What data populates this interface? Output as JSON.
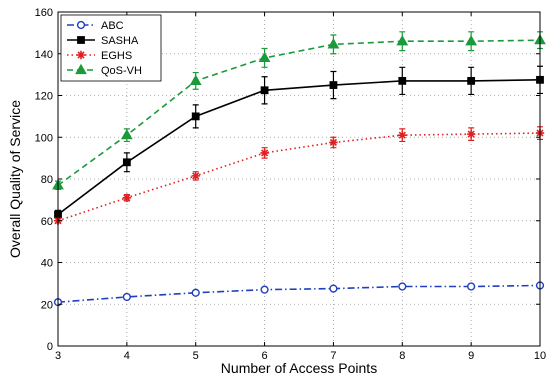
{
  "chart_data": {
    "type": "line",
    "xlabel": "Number of Access Points",
    "ylabel": "Overall Quality of Service",
    "xlim": [
      3,
      10
    ],
    "ylim": [
      0,
      160
    ],
    "xticks": [
      3,
      4,
      5,
      6,
      7,
      8,
      9,
      10
    ],
    "yticks": [
      0,
      20,
      40,
      60,
      80,
      100,
      120,
      140,
      160
    ],
    "grid": true,
    "legend": "top-left",
    "x": [
      3,
      4,
      5,
      6,
      7,
      8,
      9,
      10
    ],
    "series": [
      {
        "name": "ABC",
        "color": "#1f3fbf",
        "dash": "dashdot",
        "marker": "circle-open",
        "values": [
          21,
          23.5,
          25.5,
          27,
          27.5,
          28.5,
          28.5,
          29
        ],
        "err": [
          0.8,
          0.8,
          0.8,
          0.8,
          0.8,
          0.8,
          0.8,
          0.8
        ]
      },
      {
        "name": "SASHA",
        "color": "#000000",
        "dash": "solid",
        "marker": "square",
        "values": [
          63,
          88,
          110,
          122.5,
          125,
          127,
          127,
          127.5
        ],
        "err": [
          2,
          4.5,
          5.5,
          6.5,
          6.5,
          6.5,
          6.5,
          6.5
        ]
      },
      {
        "name": "EGHS",
        "color": "#e02020",
        "dash": "dotted",
        "marker": "asterisk",
        "values": [
          60,
          71,
          81.5,
          92.5,
          97.5,
          101,
          101.5,
          102
        ],
        "err": [
          1,
          1.5,
          2,
          2.5,
          2.5,
          3,
          3,
          3
        ]
      },
      {
        "name": "QoS-VH",
        "color": "#1a9a3a",
        "dash": "dashed",
        "marker": "triangle",
        "values": [
          77,
          101,
          127,
          138,
          144.5,
          146,
          146,
          146.5
        ],
        "err": [
          2,
          3,
          4,
          4.5,
          4.5,
          4.5,
          4.5,
          4
        ]
      }
    ]
  }
}
